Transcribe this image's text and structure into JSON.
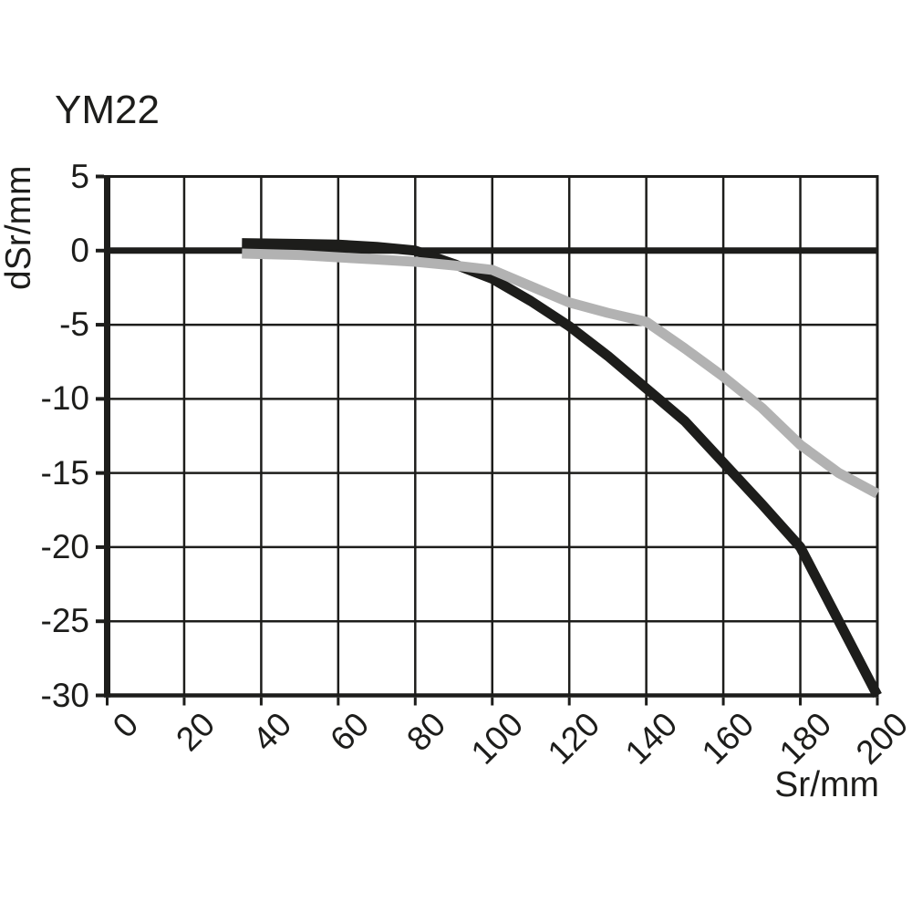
{
  "chart_data": {
    "type": "line",
    "title": "YM22",
    "xlabel": "Sr/mm",
    "ylabel": "dSr/mm",
    "xlim": [
      0,
      200
    ],
    "ylim": [
      -30,
      5
    ],
    "x_ticks": [
      0,
      20,
      40,
      60,
      80,
      100,
      120,
      140,
      160,
      180,
      200
    ],
    "y_ticks": [
      5,
      0,
      -5,
      -10,
      -15,
      -20,
      -25,
      -30
    ],
    "grid": true,
    "legend": "none",
    "background": "#ffffff",
    "axis_color": "#1d1d1b",
    "grid_color": "#1d1d1b",
    "zero_line": {
      "y": 0,
      "color": "#1d1d1b",
      "width": 7
    },
    "series": [
      {
        "name": "black-curve",
        "color": "#1d1d1b",
        "width": 11,
        "points": [
          [
            35,
            0.5
          ],
          [
            50,
            0.45
          ],
          [
            60,
            0.4
          ],
          [
            70,
            0.25
          ],
          [
            80,
            0.0
          ],
          [
            90,
            -0.9
          ],
          [
            100,
            -1.9
          ],
          [
            110,
            -3.4
          ],
          [
            120,
            -5.1
          ],
          [
            130,
            -7.1
          ],
          [
            140,
            -9.3
          ],
          [
            150,
            -11.5
          ],
          [
            160,
            -14.3
          ],
          [
            170,
            -17.1
          ],
          [
            180,
            -20.0
          ],
          [
            200,
            -30.0
          ]
        ]
      },
      {
        "name": "gray-curve",
        "color": "#b2b2b2",
        "width": 11,
        "points": [
          [
            35,
            -0.2
          ],
          [
            50,
            -0.3
          ],
          [
            60,
            -0.45
          ],
          [
            70,
            -0.6
          ],
          [
            80,
            -0.75
          ],
          [
            90,
            -1.0
          ],
          [
            100,
            -1.3
          ],
          [
            110,
            -2.4
          ],
          [
            120,
            -3.5
          ],
          [
            130,
            -4.2
          ],
          [
            140,
            -4.8
          ],
          [
            150,
            -6.6
          ],
          [
            160,
            -8.5
          ],
          [
            170,
            -10.6
          ],
          [
            180,
            -13.1
          ],
          [
            190,
            -15.0
          ],
          [
            200,
            -16.4
          ]
        ]
      }
    ]
  }
}
